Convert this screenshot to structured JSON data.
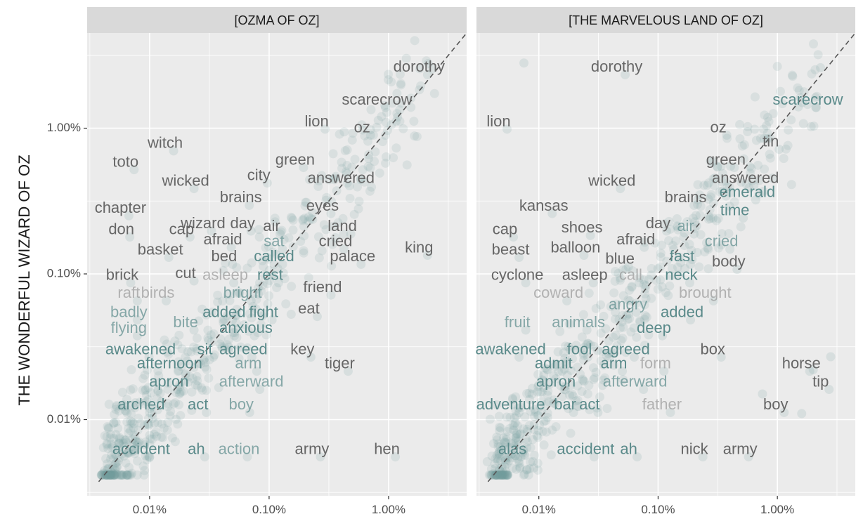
{
  "chart_data": {
    "type": "scatter",
    "y_axis_title": "THE WONDERFUL WIZARD OF OZ",
    "x_scale": "log10",
    "y_scale": "log10",
    "xlim_percent": [
      0.003,
      4.5
    ],
    "ylim_percent": [
      0.003,
      4.5
    ],
    "tick_values_percent": [
      0.01,
      0.1,
      1.0
    ],
    "tick_labels": [
      "0.01%",
      "0.10%",
      "1.00%"
    ],
    "reference_line": "y = x (dashed)",
    "colors": {
      "panel_background": "#ebebeb",
      "strip_background": "#d9d9d9",
      "grid": "#ffffff",
      "points": "#6f9a9a",
      "label_gray": "#666666",
      "label_teal": "#5a8a8a",
      "dashed_line": "#555555"
    },
    "panels": [
      {
        "strip_title": "[OZMA OF OZ]",
        "labeled_words": [
          {
            "word": "dorothy",
            "x": 1.8,
            "y": 2.6,
            "tone": "gray"
          },
          {
            "word": "scarecrow",
            "x": 0.8,
            "y": 1.55,
            "tone": "gray"
          },
          {
            "word": "lion",
            "x": 0.25,
            "y": 1.1,
            "tone": "gray"
          },
          {
            "word": "oz",
            "x": 0.6,
            "y": 1.0,
            "tone": "gray"
          },
          {
            "word": "witch",
            "x": 0.0135,
            "y": 0.78,
            "tone": "gray"
          },
          {
            "word": "toto",
            "x": 0.0063,
            "y": 0.58,
            "tone": "gray"
          },
          {
            "word": "green",
            "x": 0.165,
            "y": 0.6,
            "tone": "gray"
          },
          {
            "word": "city",
            "x": 0.082,
            "y": 0.47,
            "tone": "gray"
          },
          {
            "word": "answered",
            "x": 0.4,
            "y": 0.45,
            "tone": "gray"
          },
          {
            "word": "wicked",
            "x": 0.02,
            "y": 0.43,
            "tone": "gray"
          },
          {
            "word": "brains",
            "x": 0.058,
            "y": 0.33,
            "tone": "gray"
          },
          {
            "word": "eyes",
            "x": 0.28,
            "y": 0.29,
            "tone": "gray"
          },
          {
            "word": "chapter",
            "x": 0.0057,
            "y": 0.28,
            "tone": "gray"
          },
          {
            "word": "wizard",
            "x": 0.028,
            "y": 0.22,
            "tone": "gray"
          },
          {
            "word": "day",
            "x": 0.06,
            "y": 0.22,
            "tone": "gray"
          },
          {
            "word": "air",
            "x": 0.105,
            "y": 0.21,
            "tone": "gray"
          },
          {
            "word": "land",
            "x": 0.41,
            "y": 0.21,
            "tone": "gray"
          },
          {
            "word": "don",
            "x": 0.0058,
            "y": 0.2,
            "tone": "gray"
          },
          {
            "word": "cap",
            "x": 0.0185,
            "y": 0.2,
            "tone": "gray"
          },
          {
            "word": "afraid",
            "x": 0.041,
            "y": 0.17,
            "tone": "gray"
          },
          {
            "word": "sat",
            "x": 0.11,
            "y": 0.165,
            "tone": "teal-light"
          },
          {
            "word": "cried",
            "x": 0.36,
            "y": 0.165,
            "tone": "gray"
          },
          {
            "word": "king",
            "x": 1.8,
            "y": 0.15,
            "tone": "gray"
          },
          {
            "word": "basket",
            "x": 0.0123,
            "y": 0.145,
            "tone": "gray"
          },
          {
            "word": "bed",
            "x": 0.042,
            "y": 0.13,
            "tone": "gray"
          },
          {
            "word": "called",
            "x": 0.11,
            "y": 0.13,
            "tone": "teal"
          },
          {
            "word": "palace",
            "x": 0.5,
            "y": 0.13,
            "tone": "gray"
          },
          {
            "word": "cut",
            "x": 0.02,
            "y": 0.1,
            "tone": "gray"
          },
          {
            "word": "brick",
            "x": 0.0059,
            "y": 0.097,
            "tone": "gray"
          },
          {
            "word": "asleep",
            "x": 0.043,
            "y": 0.097,
            "tone": "faded"
          },
          {
            "word": "rest",
            "x": 0.102,
            "y": 0.097,
            "tone": "teal"
          },
          {
            "word": "friend",
            "x": 0.28,
            "y": 0.08,
            "tone": "gray"
          },
          {
            "word": "raft",
            "x": 0.0067,
            "y": 0.073,
            "tone": "faded"
          },
          {
            "word": "birds",
            "x": 0.0117,
            "y": 0.073,
            "tone": "faded"
          },
          {
            "word": "bright",
            "x": 0.06,
            "y": 0.073,
            "tone": "teal-light"
          },
          {
            "word": "eat",
            "x": 0.215,
            "y": 0.057,
            "tone": "gray"
          },
          {
            "word": "badly",
            "x": 0.0067,
            "y": 0.054,
            "tone": "teal-light"
          },
          {
            "word": "added",
            "x": 0.042,
            "y": 0.054,
            "tone": "teal"
          },
          {
            "word": "fight",
            "x": 0.09,
            "y": 0.054,
            "tone": "teal"
          },
          {
            "word": "bite",
            "x": 0.02,
            "y": 0.046,
            "tone": "teal-light"
          },
          {
            "word": "flying",
            "x": 0.0067,
            "y": 0.042,
            "tone": "teal-light"
          },
          {
            "word": "anxious",
            "x": 0.064,
            "y": 0.042,
            "tone": "teal"
          },
          {
            "word": "awakened",
            "x": 0.0084,
            "y": 0.03,
            "tone": "teal"
          },
          {
            "word": "sit",
            "x": 0.029,
            "y": 0.03,
            "tone": "teal"
          },
          {
            "word": "agreed",
            "x": 0.061,
            "y": 0.03,
            "tone": "teal"
          },
          {
            "word": "key",
            "x": 0.19,
            "y": 0.03,
            "tone": "gray"
          },
          {
            "word": "afternoon",
            "x": 0.0147,
            "y": 0.024,
            "tone": "teal"
          },
          {
            "word": "arm",
            "x": 0.067,
            "y": 0.024,
            "tone": "teal-light"
          },
          {
            "word": "tiger",
            "x": 0.39,
            "y": 0.024,
            "tone": "gray"
          },
          {
            "word": "apron",
            "x": 0.0145,
            "y": 0.018,
            "tone": "teal"
          },
          {
            "word": "afterward",
            "x": 0.071,
            "y": 0.018,
            "tone": "teal-light"
          },
          {
            "word": "arched",
            "x": 0.0085,
            "y": 0.0125,
            "tone": "teal"
          },
          {
            "word": "act",
            "x": 0.0254,
            "y": 0.0125,
            "tone": "teal"
          },
          {
            "word": "boy",
            "x": 0.0584,
            "y": 0.0125,
            "tone": "teal-light"
          },
          {
            "word": "accident",
            "x": 0.0085,
            "y": 0.0062,
            "tone": "teal"
          },
          {
            "word": "ah",
            "x": 0.0246,
            "y": 0.0062,
            "tone": "teal"
          },
          {
            "word": "action",
            "x": 0.0559,
            "y": 0.0062,
            "tone": "teal-light"
          },
          {
            "word": "army",
            "x": 0.2286,
            "y": 0.0062,
            "tone": "gray"
          },
          {
            "word": "hen",
            "x": 0.9682,
            "y": 0.0062,
            "tone": "gray"
          }
        ]
      },
      {
        "strip_title": "[THE MARVELOUS LAND OF OZ]",
        "labeled_words": [
          {
            "word": "dorothy",
            "x": 0.045,
            "y": 2.6,
            "tone": "gray"
          },
          {
            "word": "lion",
            "x": 0.0046,
            "y": 1.1,
            "tone": "gray"
          },
          {
            "word": "scarecrow",
            "x": 1.8,
            "y": 1.55,
            "tone": "teal"
          },
          {
            "word": "oz",
            "x": 0.32,
            "y": 1.0,
            "tone": "gray"
          },
          {
            "word": "tin",
            "x": 0.88,
            "y": 0.8,
            "tone": "gray"
          },
          {
            "word": "green",
            "x": 0.37,
            "y": 0.6,
            "tone": "gray"
          },
          {
            "word": "answered",
            "x": 0.54,
            "y": 0.45,
            "tone": "gray"
          },
          {
            "word": "wicked",
            "x": 0.041,
            "y": 0.43,
            "tone": "gray"
          },
          {
            "word": "emerald",
            "x": 0.56,
            "y": 0.36,
            "tone": "teal"
          },
          {
            "word": "kansas",
            "x": 0.011,
            "y": 0.29,
            "tone": "gray"
          },
          {
            "word": "brains",
            "x": 0.17,
            "y": 0.33,
            "tone": "gray"
          },
          {
            "word": "time",
            "x": 0.44,
            "y": 0.27,
            "tone": "teal"
          },
          {
            "word": "cap",
            "x": 0.0052,
            "y": 0.2,
            "tone": "gray"
          },
          {
            "word": "shoes",
            "x": 0.023,
            "y": 0.205,
            "tone": "gray"
          },
          {
            "word": "day",
            "x": 0.1,
            "y": 0.22,
            "tone": "gray"
          },
          {
            "word": "air",
            "x": 0.17,
            "y": 0.21,
            "tone": "teal-light"
          },
          {
            "word": "afraid",
            "x": 0.065,
            "y": 0.17,
            "tone": "gray"
          },
          {
            "word": "cried",
            "x": 0.34,
            "y": 0.165,
            "tone": "teal-light"
          },
          {
            "word": "beast",
            "x": 0.0058,
            "y": 0.145,
            "tone": "gray"
          },
          {
            "word": "balloon",
            "x": 0.0203,
            "y": 0.15,
            "tone": "gray"
          },
          {
            "word": "fast",
            "x": 0.1588,
            "y": 0.13,
            "tone": "teal"
          },
          {
            "word": "blue",
            "x": 0.0479,
            "y": 0.125,
            "tone": "gray"
          },
          {
            "word": "body",
            "x": 0.3904,
            "y": 0.12,
            "tone": "gray"
          },
          {
            "word": "cyclone",
            "x": 0.0066,
            "y": 0.097,
            "tone": "gray"
          },
          {
            "word": "asleep",
            "x": 0.0243,
            "y": 0.097,
            "tone": "gray"
          },
          {
            "word": "call",
            "x": 0.0589,
            "y": 0.097,
            "tone": "faded"
          },
          {
            "word": "neck",
            "x": 0.1565,
            "y": 0.097,
            "tone": "teal"
          },
          {
            "word": "coward",
            "x": 0.0146,
            "y": 0.073,
            "tone": "faded"
          },
          {
            "word": "brought",
            "x": 0.2476,
            "y": 0.073,
            "tone": "faded"
          },
          {
            "word": "angry",
            "x": 0.0559,
            "y": 0.061,
            "tone": "teal-light"
          },
          {
            "word": "added",
            "x": 0.1589,
            "y": 0.054,
            "tone": "teal"
          },
          {
            "word": "fruit",
            "x": 0.0066,
            "y": 0.046,
            "tone": "teal-light"
          },
          {
            "word": "animals",
            "x": 0.0215,
            "y": 0.046,
            "tone": "teal-light"
          },
          {
            "word": "deep",
            "x": 0.0922,
            "y": 0.042,
            "tone": "teal"
          },
          {
            "word": "awakened",
            "x": 0.0058,
            "y": 0.03,
            "tone": "teal"
          },
          {
            "word": "fool",
            "x": 0.0219,
            "y": 0.03,
            "tone": "teal"
          },
          {
            "word": "agreed",
            "x": 0.0536,
            "y": 0.03,
            "tone": "teal"
          },
          {
            "word": "box",
            "x": 0.2872,
            "y": 0.03,
            "tone": "gray"
          },
          {
            "word": "admit",
            "x": 0.0133,
            "y": 0.024,
            "tone": "teal"
          },
          {
            "word": "arm",
            "x": 0.0426,
            "y": 0.024,
            "tone": "teal"
          },
          {
            "word": "form",
            "x": 0.0952,
            "y": 0.024,
            "tone": "faded"
          },
          {
            "word": "horse",
            "x": 1.5879,
            "y": 0.024,
            "tone": "gray"
          },
          {
            "word": "apron",
            "x": 0.0139,
            "y": 0.018,
            "tone": "teal"
          },
          {
            "word": "afterward",
            "x": 0.0641,
            "y": 0.018,
            "tone": "teal-light"
          },
          {
            "word": "tip",
            "x": 2.3062,
            "y": 0.018,
            "tone": "gray"
          },
          {
            "word": "adventure",
            "x": 0.0058,
            "y": 0.0125,
            "tone": "teal"
          },
          {
            "word": "bar",
            "x": 0.0166,
            "y": 0.0125,
            "tone": "teal"
          },
          {
            "word": "act",
            "x": 0.0266,
            "y": 0.0125,
            "tone": "teal"
          },
          {
            "word": "father",
            "x": 0.1077,
            "y": 0.0125,
            "tone": "faded"
          },
          {
            "word": "boy",
            "x": 0.9682,
            "y": 0.0125,
            "tone": "gray"
          },
          {
            "word": "alas",
            "x": 0.006,
            "y": 0.0062,
            "tone": "teal"
          },
          {
            "word": "accident",
            "x": 0.0247,
            "y": 0.0062,
            "tone": "teal"
          },
          {
            "word": "ah",
            "x": 0.0567,
            "y": 0.0062,
            "tone": "teal"
          },
          {
            "word": "nick",
            "x": 0.2016,
            "y": 0.0062,
            "tone": "gray"
          },
          {
            "word": "army",
            "x": 0.4874,
            "y": 0.0062,
            "tone": "gray"
          }
        ],
        "outlier_points": [
          {
            "x": 0.0075,
            "y": 2.8
          },
          {
            "x": 2.3,
            "y": 2.6
          },
          {
            "x": 1.5,
            "y": 1.4
          },
          {
            "x": 2.0,
            "y": 0.022
          },
          {
            "x": 2.8,
            "y": 0.027
          },
          {
            "x": 1.6,
            "y": 0.011
          },
          {
            "x": 0.75,
            "y": 0.015
          }
        ]
      }
    ]
  }
}
